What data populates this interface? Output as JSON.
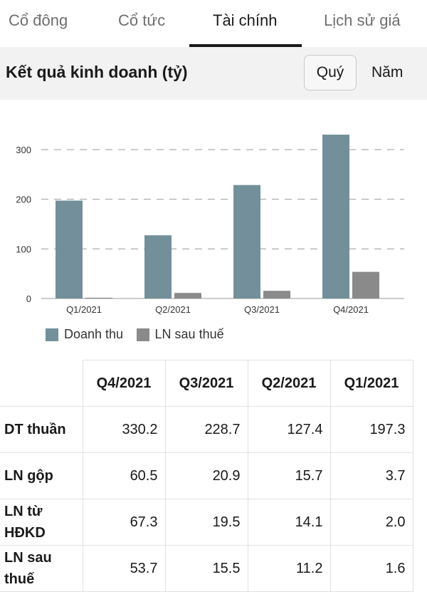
{
  "tabs": [
    {
      "label": "Cổ đông"
    },
    {
      "label": "Cổ tức"
    },
    {
      "label": "Tài chính"
    },
    {
      "label": "Lịch sử giá"
    }
  ],
  "header": {
    "title": "Kết quả kinh doanh (tỷ)",
    "period_quarter": "Quý",
    "period_year": "Năm"
  },
  "colors": {
    "revenue": "#73909a",
    "profit": "#8a8a8a",
    "active_tab": "#1a1a1a"
  },
  "chart_data": {
    "type": "bar",
    "categories": [
      "Q1/2021",
      "Q2/2021",
      "Q3/2021",
      "Q4/2021"
    ],
    "series": [
      {
        "name": "Doanh thu",
        "values": [
          197.3,
          127.4,
          228.7,
          330.2
        ]
      },
      {
        "name": "LN sau thuế",
        "values": [
          1.6,
          11.2,
          15.5,
          53.7
        ]
      }
    ],
    "yticks": [
      0,
      100,
      200,
      300
    ],
    "ylim": [
      0,
      330.2
    ],
    "grid": true,
    "legend": "bottom"
  },
  "table": {
    "headers": [
      "",
      "Q4/2021",
      "Q3/2021",
      "Q2/2021",
      "Q1/2021"
    ],
    "rows": [
      {
        "label": "DT thuần",
        "values": [
          "330.2",
          "228.7",
          "127.4",
          "197.3"
        ]
      },
      {
        "label": "LN gộp",
        "values": [
          "60.5",
          "20.9",
          "15.7",
          "3.7"
        ]
      },
      {
        "label": "LN từ HĐKD",
        "values": [
          "67.3",
          "19.5",
          "14.1",
          "2.0"
        ]
      },
      {
        "label": "LN sau thuế",
        "values": [
          "53.7",
          "15.5",
          "11.2",
          "1.6"
        ]
      }
    ]
  }
}
